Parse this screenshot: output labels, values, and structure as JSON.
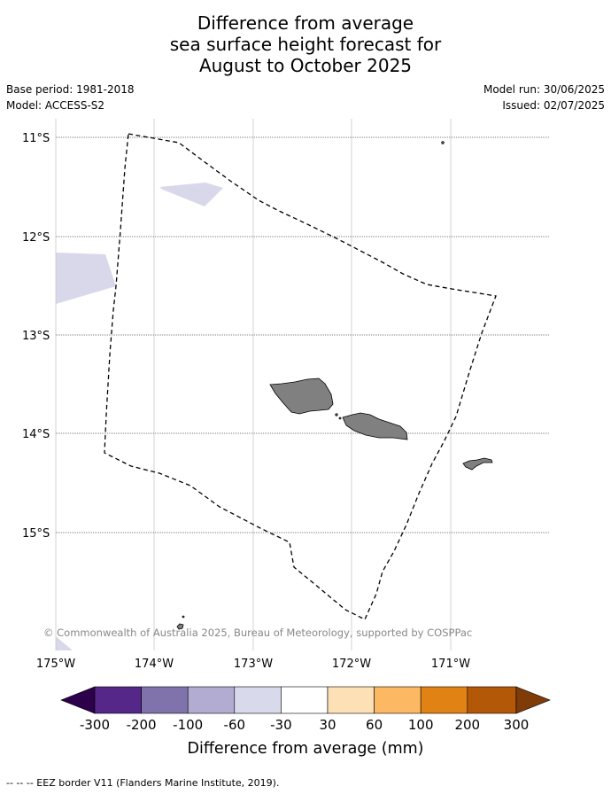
{
  "title": {
    "line1": "Difference from average",
    "line2": "sea surface height forecast for",
    "line3": "August to October 2025"
  },
  "meta": {
    "base_period": "Base period: 1981-2018",
    "model": "Model: ACCESS-S2",
    "model_run": "Model run: 30/06/2025",
    "issued": "Issued: 02/07/2025"
  },
  "map": {
    "latitude_labels": [
      "11°S",
      "12°S",
      "13°S",
      "14°S",
      "15°S"
    ],
    "longitude_labels": [
      "175°W",
      "174°W",
      "173°W",
      "172°W",
      "171°W"
    ],
    "copyright": "© Commonwealth of Australia 2025, Bureau of Meteorology, supported by COSPPac",
    "land_color": "#808080",
    "anomaly_fill_color": "#d8d8ea",
    "eez_line_style": "dashed black"
  },
  "colorbar": {
    "title": "Difference from average (mm)",
    "tick_labels": [
      "-300",
      "-200",
      "-100",
      "-60",
      "-30",
      "30",
      "60",
      "100",
      "200",
      "300"
    ],
    "colors": [
      "#2d004b",
      "#542788",
      "#8073ac",
      "#b2abd2",
      "#d8daeb",
      "#ffffff",
      "#fee0b6",
      "#fdb863",
      "#e08214",
      "#b35806",
      "#7f3b08"
    ]
  },
  "footnote": "--  --  -- EEZ border V11 (Flanders Marine Institute, 2019)."
}
